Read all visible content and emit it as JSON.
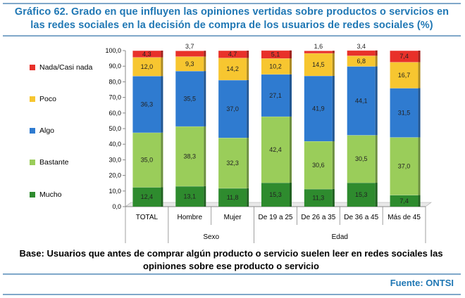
{
  "title": "Gráfico 62. Grado en que influyen las opiniones vertidas sobre productos o servicios en las redes sociales en la decisión de compra de los usuarios de redes sociales (%)",
  "base_note": "Base: Usuarios que antes de comprar algún producto o servicio suelen leer  en  redes sociales las opiniones sobre ese producto o servicio",
  "source": "Fuente: ONTSI",
  "chart_data": {
    "type": "bar",
    "stacked": true,
    "categories": [
      "TOTAL",
      "Hombre",
      "Mujer",
      "De 19 a 25",
      "De 26 a 35",
      "De 36 a 45",
      "Más de 45"
    ],
    "groups": [
      {
        "label": "Sexo",
        "categories": [
          "Hombre",
          "Mujer"
        ]
      },
      {
        "label": "Edad",
        "categories": [
          "De 19 a 25",
          "De 26 a 35",
          "De 36 a 45",
          "Más de 45"
        ]
      }
    ],
    "ylim": [
      0,
      100
    ],
    "yticks": [
      "0,0",
      "10,0",
      "20,0",
      "30,0",
      "40,0",
      "50,0",
      "60,0",
      "70,0",
      "80,0",
      "90,0",
      "100,0"
    ],
    "series": [
      {
        "name": "Mucho",
        "color": "#2e8b2e",
        "values": [
          12.4,
          13.1,
          11.8,
          15.3,
          11.3,
          15.3,
          7.4
        ],
        "labels": [
          "12,4",
          "13,1",
          "11,8",
          "15,3",
          "11,3",
          "15,3",
          "7,4"
        ]
      },
      {
        "name": "Bastante",
        "color": "#9acd5a",
        "values": [
          35.0,
          38.3,
          32.3,
          42.4,
          30.6,
          30.5,
          37.0
        ],
        "labels": [
          "35,0",
          "38,3",
          "32,3",
          "42,4",
          "30,6",
          "30,5",
          "37,0"
        ]
      },
      {
        "name": "Algo",
        "color": "#2f7bd0",
        "values": [
          36.3,
          35.5,
          37.0,
          27.1,
          41.9,
          44.1,
          31.5
        ],
        "labels": [
          "36,3",
          "35,5",
          "37,0",
          "27,1",
          "41,9",
          "44,1",
          "31,5"
        ]
      },
      {
        "name": "Poco",
        "color": "#f7c630",
        "values": [
          12.0,
          9.3,
          14.2,
          10.2,
          14.5,
          6.8,
          16.7
        ],
        "labels": [
          "12,0",
          "9,3",
          "14,2",
          "10,2",
          "14,5",
          "6,8",
          "16,7"
        ]
      },
      {
        "name": "Nada/Casi nada",
        "color": "#e8312a",
        "values": [
          4.3,
          3.7,
          4.7,
          5.1,
          1.6,
          3.4,
          7.4
        ],
        "labels": [
          "4,3",
          "3,7",
          "4,7",
          "5,1",
          "1,6",
          "3,4",
          "7,4"
        ]
      }
    ],
    "legend_position": "left",
    "grid": false
  }
}
